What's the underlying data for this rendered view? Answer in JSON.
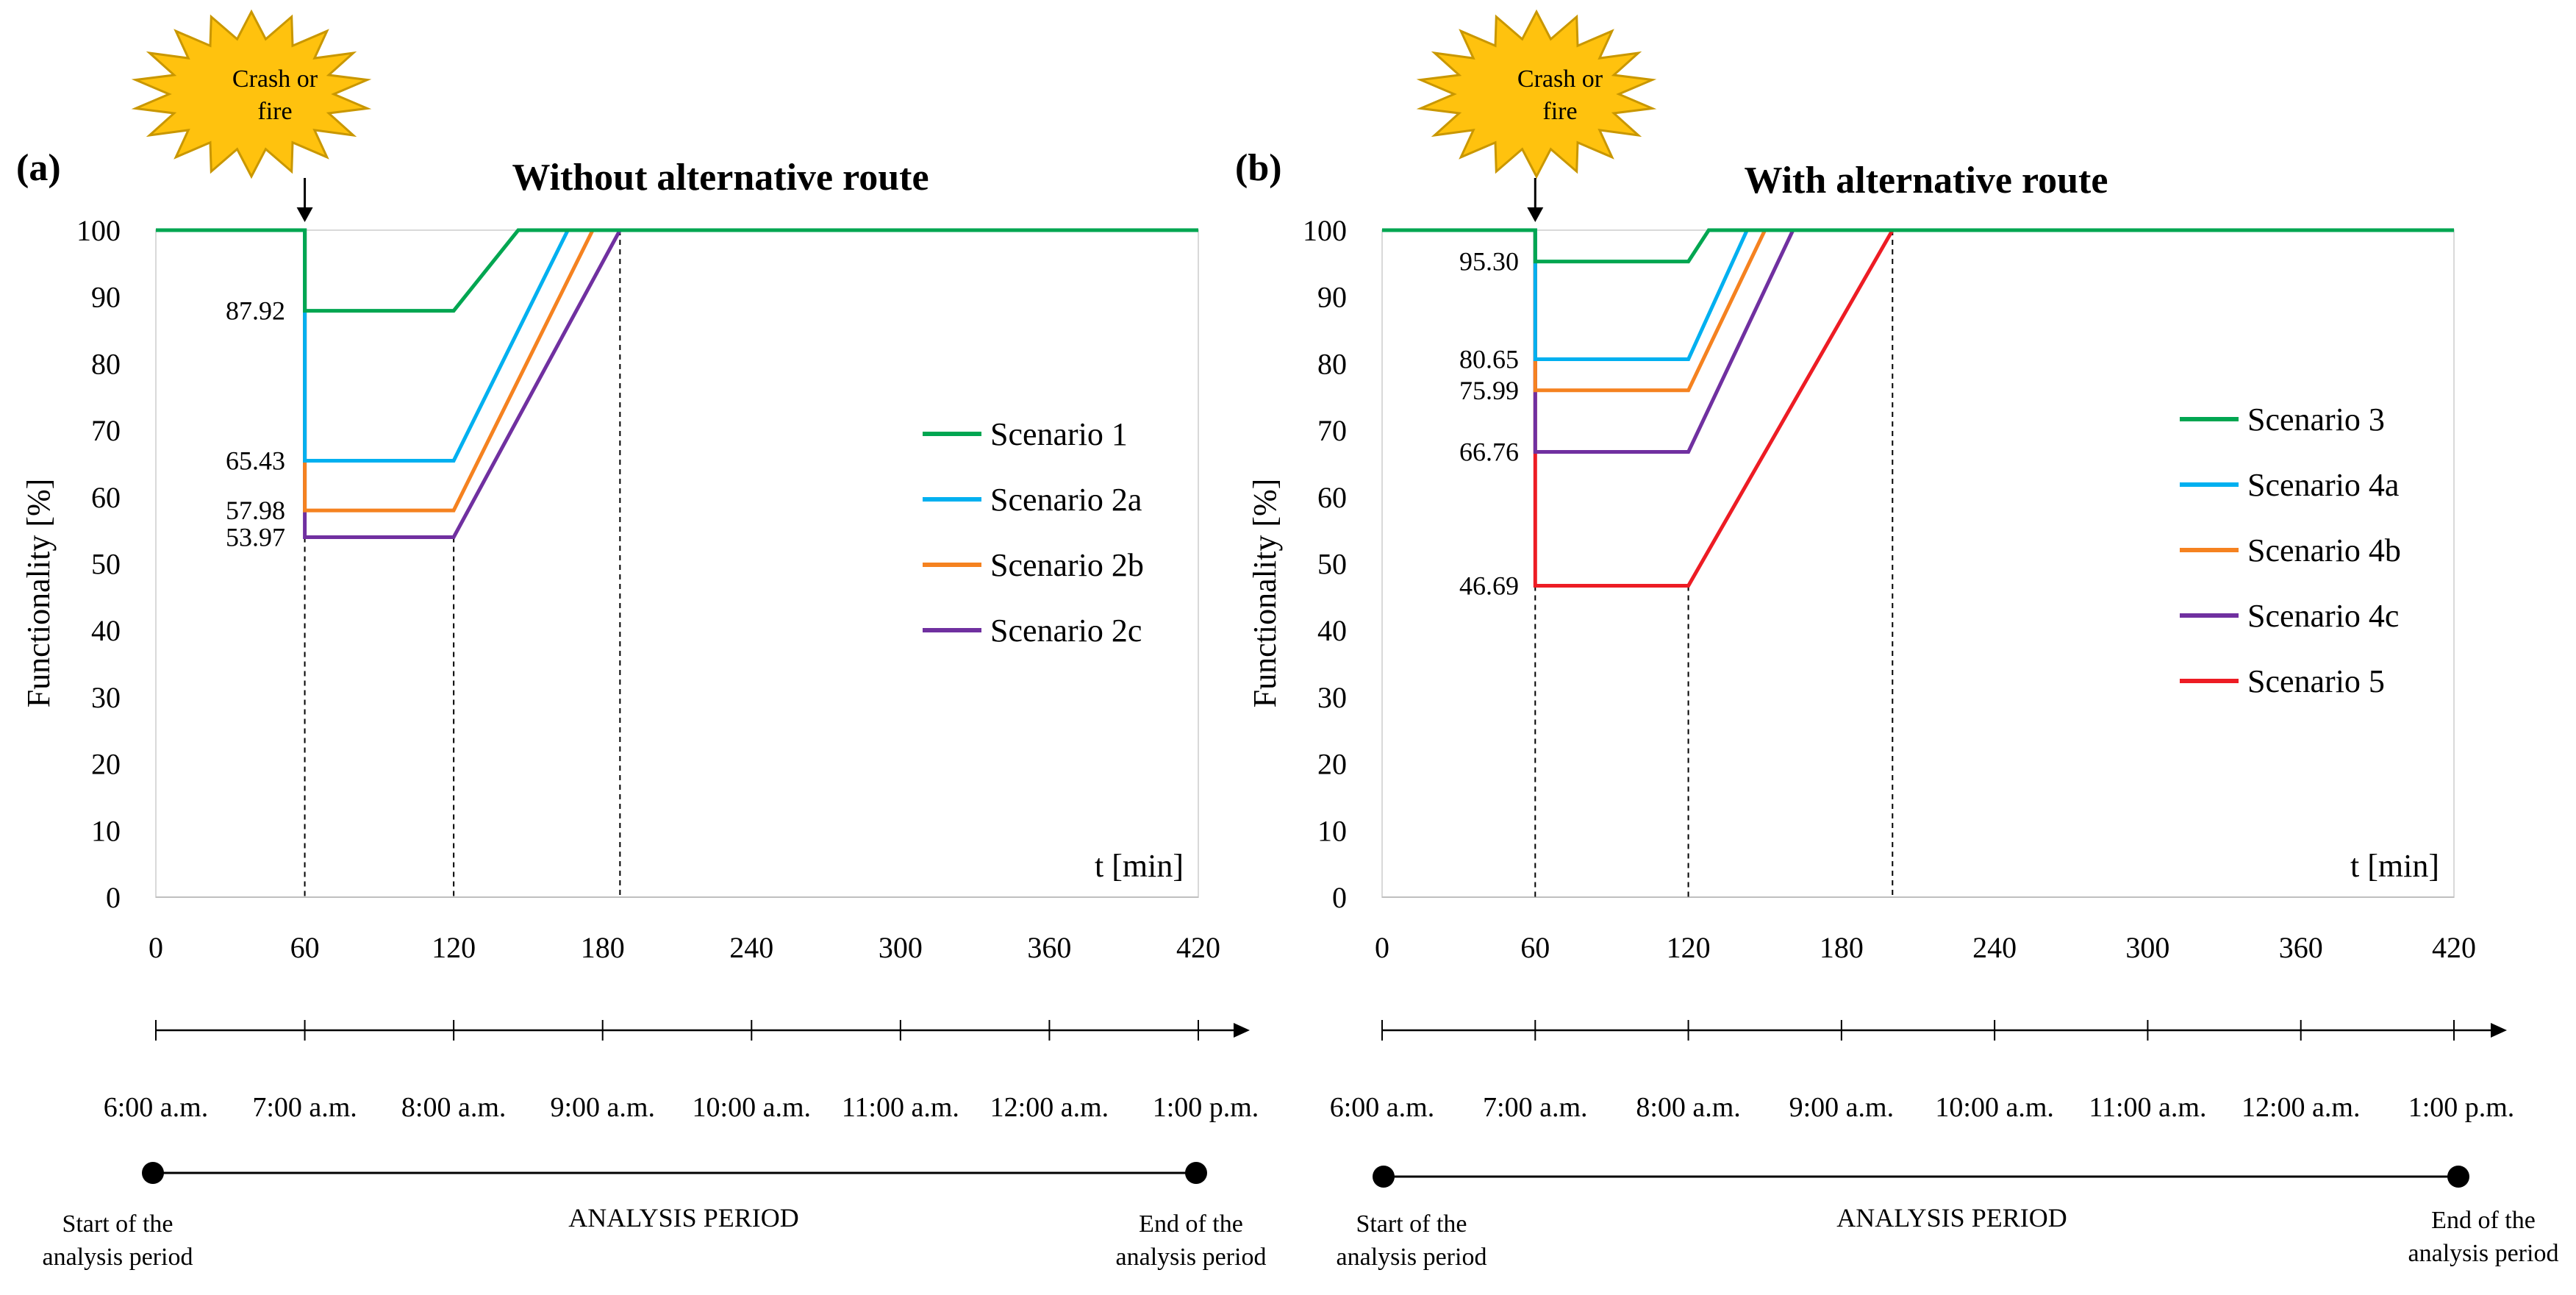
{
  "panels": [
    {
      "id": "a",
      "panel_label": "(a)",
      "burst_label": [
        "Crash or",
        "fire"
      ],
      "chart_data": {
        "type": "line",
        "title": "Without alternative route",
        "xlabel": "t [min]",
        "ylabel": "Functionality [%]",
        "xlim": [
          0,
          420
        ],
        "ylim": [
          0,
          100
        ],
        "xticks": [
          0,
          60,
          120,
          180,
          240,
          300,
          360,
          420
        ],
        "yticks": [
          0,
          10,
          20,
          30,
          40,
          50,
          60,
          70,
          80,
          90,
          100
        ],
        "vlines": [
          60,
          120,
          187
        ],
        "series": [
          {
            "name": "Scenario 1",
            "color": "#00A651",
            "x": [
              0,
              60,
              60,
              120,
              146,
              420
            ],
            "y": [
              100,
              100,
              87.92,
              87.92,
              100,
              100
            ]
          },
          {
            "name": "Scenario 2a",
            "color": "#00B0F0",
            "x": [
              0,
              60,
              60,
              120,
              166,
              420
            ],
            "y": [
              100,
              100,
              65.43,
              65.43,
              100,
              100
            ]
          },
          {
            "name": "Scenario 2b",
            "color": "#F58220",
            "x": [
              0,
              60,
              60,
              120,
              176,
              420
            ],
            "y": [
              100,
              100,
              57.98,
              57.98,
              100,
              100
            ]
          },
          {
            "name": "Scenario 2c",
            "color": "#7030A0",
            "x": [
              0,
              60,
              60,
              120,
              187,
              420
            ],
            "y": [
              100,
              100,
              53.97,
              53.97,
              100,
              100
            ]
          }
        ],
        "value_labels": [
          {
            "text": "87.92",
            "value": 87.92
          },
          {
            "text": "65.43",
            "value": 65.43
          },
          {
            "text": "57.98",
            "value": 57.98
          },
          {
            "text": "53.97",
            "value": 53.97
          }
        ]
      },
      "timeline": {
        "times": [
          "6:00 a.m.",
          "7:00 a.m.",
          "8:00 a.m.",
          "9:00 a.m.",
          "10:00 a.m.",
          "11:00 a.m.",
          "12:00 a.m.",
          "1:00 p.m."
        ],
        "period_label": "ANALYSIS PERIOD",
        "start_label": [
          "Start of the",
          "analysis period"
        ],
        "end_label": [
          "End of the",
          "analysis period"
        ]
      }
    },
    {
      "id": "b",
      "panel_label": "(b)",
      "burst_label": [
        "Crash or",
        "fire"
      ],
      "chart_data": {
        "type": "line",
        "title": "With alternative route",
        "xlabel": "t [min]",
        "ylabel": "Functionality [%]",
        "xlim": [
          0,
          420
        ],
        "ylim": [
          0,
          100
        ],
        "xticks": [
          0,
          60,
          120,
          180,
          240,
          300,
          360,
          420
        ],
        "yticks": [
          0,
          10,
          20,
          30,
          40,
          50,
          60,
          70,
          80,
          90,
          100
        ],
        "vlines": [
          60,
          120,
          200
        ],
        "series": [
          {
            "name": "Scenario 3",
            "color": "#00A651",
            "x": [
              0,
              60,
              60,
              120,
              128,
              420
            ],
            "y": [
              100,
              100,
              95.3,
              95.3,
              100,
              100
            ]
          },
          {
            "name": "Scenario 4a",
            "color": "#00B0F0",
            "x": [
              0,
              60,
              60,
              120,
              143,
              420
            ],
            "y": [
              100,
              100,
              80.65,
              80.65,
              100,
              100
            ]
          },
          {
            "name": "Scenario 4b",
            "color": "#F58220",
            "x": [
              0,
              60,
              60,
              120,
              150,
              420
            ],
            "y": [
              100,
              100,
              75.99,
              75.99,
              100,
              100
            ]
          },
          {
            "name": "Scenario 4c",
            "color": "#7030A0",
            "x": [
              0,
              60,
              60,
              120,
              161,
              420
            ],
            "y": [
              100,
              100,
              66.76,
              66.76,
              100,
              100
            ]
          },
          {
            "name": "Scenario 5",
            "color": "#ED1C24",
            "x": [
              0,
              60,
              60,
              120,
              200,
              420
            ],
            "y": [
              100,
              100,
              46.69,
              46.69,
              100,
              100
            ]
          }
        ],
        "value_labels": [
          {
            "text": "95.30",
            "value": 95.3
          },
          {
            "text": "80.65",
            "value": 80.65
          },
          {
            "text": "75.99",
            "value": 75.99
          },
          {
            "text": "66.76",
            "value": 66.76
          },
          {
            "text": "46.69",
            "value": 46.69
          }
        ]
      },
      "timeline": {
        "times": [
          "6:00 a.m.",
          "7:00 a.m.",
          "8:00 a.m.",
          "9:00 a.m.",
          "10:00 a.m.",
          "11:00 a.m.",
          "12:00 a.m.",
          "1:00 p.m."
        ],
        "period_label": "ANALYSIS PERIOD",
        "start_label": [
          "Start of the",
          "analysis period"
        ],
        "end_label": [
          "End of the",
          "analysis period"
        ]
      }
    }
  ]
}
